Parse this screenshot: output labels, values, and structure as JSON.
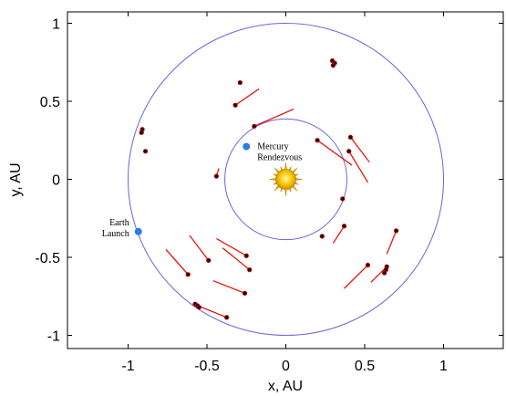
{
  "chart_data": {
    "type": "scatter",
    "xlabel": "x, AU",
    "ylabel": "y, AU",
    "xlim": [
      -1.38,
      1.38
    ],
    "ylim": [
      -1.1,
      1.1
    ],
    "xticks": [
      -1,
      -0.5,
      0,
      0.5,
      1
    ],
    "xtick_labels": [
      "-1",
      "-0.5",
      "0",
      "0.5",
      "1"
    ],
    "yticks": [
      -1,
      -0.5,
      0,
      0.5,
      1
    ],
    "ytick_labels": [
      "-1",
      "-0.5",
      "0",
      "0.5",
      "1"
    ],
    "grid": false,
    "orbits": [
      {
        "radius": 0.387,
        "color": "#6666dd"
      },
      {
        "radius": 1.0,
        "color": "#6666dd"
      }
    ],
    "sun": {
      "x": 0,
      "y": 0,
      "color": "#f5c400"
    },
    "markers": [
      {
        "x": -0.935,
        "y": -0.335,
        "label_lines": [
          "Earth",
          "Launch"
        ],
        "label_side": "left"
      },
      {
        "x": -0.25,
        "y": 0.21,
        "label_lines": [
          "Mercury",
          "Rendezvous"
        ],
        "label_side": "right"
      }
    ],
    "thrust_arcs": [
      {
        "x1": -0.32,
        "y1": 0.475,
        "x2": -0.17,
        "y2": 0.58
      },
      {
        "x1": -0.2,
        "y1": 0.34,
        "x2": 0.05,
        "y2": 0.45
      },
      {
        "x1": 0.2,
        "y1": 0.25,
        "x2": 0.42,
        "y2": 0.09
      },
      {
        "x1": 0.41,
        "y1": 0.27,
        "x2": 0.53,
        "y2": 0.11
      },
      {
        "x1": 0.4,
        "y1": 0.18,
        "x2": 0.52,
        "y2": -0.02
      },
      {
        "x1": 0.37,
        "y1": -0.3,
        "x2": 0.3,
        "y2": -0.41
      },
      {
        "x1": 0.7,
        "y1": -0.33,
        "x2": 0.64,
        "y2": -0.48
      },
      {
        "x1": 0.52,
        "y1": -0.55,
        "x2": 0.37,
        "y2": -0.7
      },
      {
        "x1": 0.64,
        "y1": -0.56,
        "x2": 0.54,
        "y2": -0.66
      },
      {
        "x1": -0.25,
        "y1": -0.49,
        "x2": -0.44,
        "y2": -0.38
      },
      {
        "x1": -0.49,
        "y1": -0.52,
        "x2": -0.61,
        "y2": -0.36
      },
      {
        "x1": -0.23,
        "y1": -0.58,
        "x2": -0.4,
        "y2": -0.44
      },
      {
        "x1": -0.62,
        "y1": -0.61,
        "x2": -0.76,
        "y2": -0.45
      },
      {
        "x1": -0.26,
        "y1": -0.73,
        "x2": -0.46,
        "y2": -0.65
      },
      {
        "x1": -0.375,
        "y1": -0.885,
        "x2": -0.57,
        "y2": -0.805
      },
      {
        "x1": -0.44,
        "y1": 0.02,
        "x2": -0.425,
        "y2": 0.07
      }
    ],
    "points": [
      {
        "x": -0.29,
        "y": 0.62
      },
      {
        "x": -0.32,
        "y": 0.475
      },
      {
        "x": -0.2,
        "y": 0.34
      },
      {
        "x": 0.295,
        "y": 0.76
      },
      {
        "x": 0.31,
        "y": 0.745
      },
      {
        "x": 0.3,
        "y": 0.73
      },
      {
        "x": -0.91,
        "y": 0.32
      },
      {
        "x": -0.915,
        "y": 0.3
      },
      {
        "x": -0.89,
        "y": 0.18
      },
      {
        "x": -0.44,
        "y": 0.02
      },
      {
        "x": 0.2,
        "y": 0.25
      },
      {
        "x": 0.41,
        "y": 0.27
      },
      {
        "x": 0.4,
        "y": 0.18
      },
      {
        "x": 0.36,
        "y": -0.125
      },
      {
        "x": 0.37,
        "y": -0.3
      },
      {
        "x": 0.23,
        "y": -0.365
      },
      {
        "x": 0.7,
        "y": -0.33
      },
      {
        "x": 0.52,
        "y": -0.55
      },
      {
        "x": 0.64,
        "y": -0.56
      },
      {
        "x": 0.635,
        "y": -0.58
      },
      {
        "x": 0.625,
        "y": -0.6
      },
      {
        "x": -0.25,
        "y": -0.49
      },
      {
        "x": -0.49,
        "y": -0.52
      },
      {
        "x": -0.23,
        "y": -0.58
      },
      {
        "x": -0.62,
        "y": -0.61
      },
      {
        "x": -0.26,
        "y": -0.73
      },
      {
        "x": -0.575,
        "y": -0.8
      },
      {
        "x": -0.56,
        "y": -0.81
      },
      {
        "x": -0.55,
        "y": -0.82
      },
      {
        "x": -0.375,
        "y": -0.885
      }
    ]
  }
}
